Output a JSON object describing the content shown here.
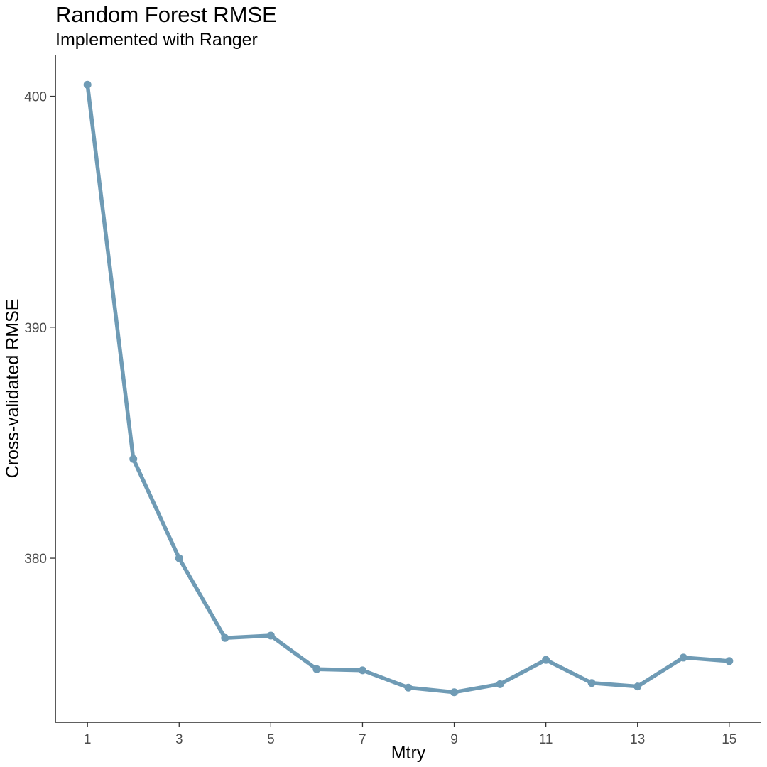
{
  "chart_data": {
    "type": "line",
    "title": "Random Forest RMSE",
    "subtitle": "Implemented with Ranger",
    "xlabel": "Mtry",
    "ylabel": "Cross-validated RMSE",
    "x": [
      1,
      2,
      3,
      4,
      5,
      6,
      7,
      8,
      9,
      10,
      11,
      12,
      13,
      14,
      15
    ],
    "y": [
      400.5,
      384.3,
      380.0,
      376.55,
      376.65,
      375.2,
      375.15,
      374.4,
      374.2,
      374.55,
      375.6,
      374.6,
      374.45,
      375.7,
      375.55
    ],
    "xlim": [
      0.3,
      15.7
    ],
    "ylim": [
      372.9,
      401.8
    ],
    "xticks": [
      1,
      3,
      5,
      7,
      9,
      11,
      13,
      15
    ],
    "yticks": [
      380,
      390,
      400
    ],
    "grid": false,
    "legend": "none",
    "series_color": "#6f9bb5"
  }
}
